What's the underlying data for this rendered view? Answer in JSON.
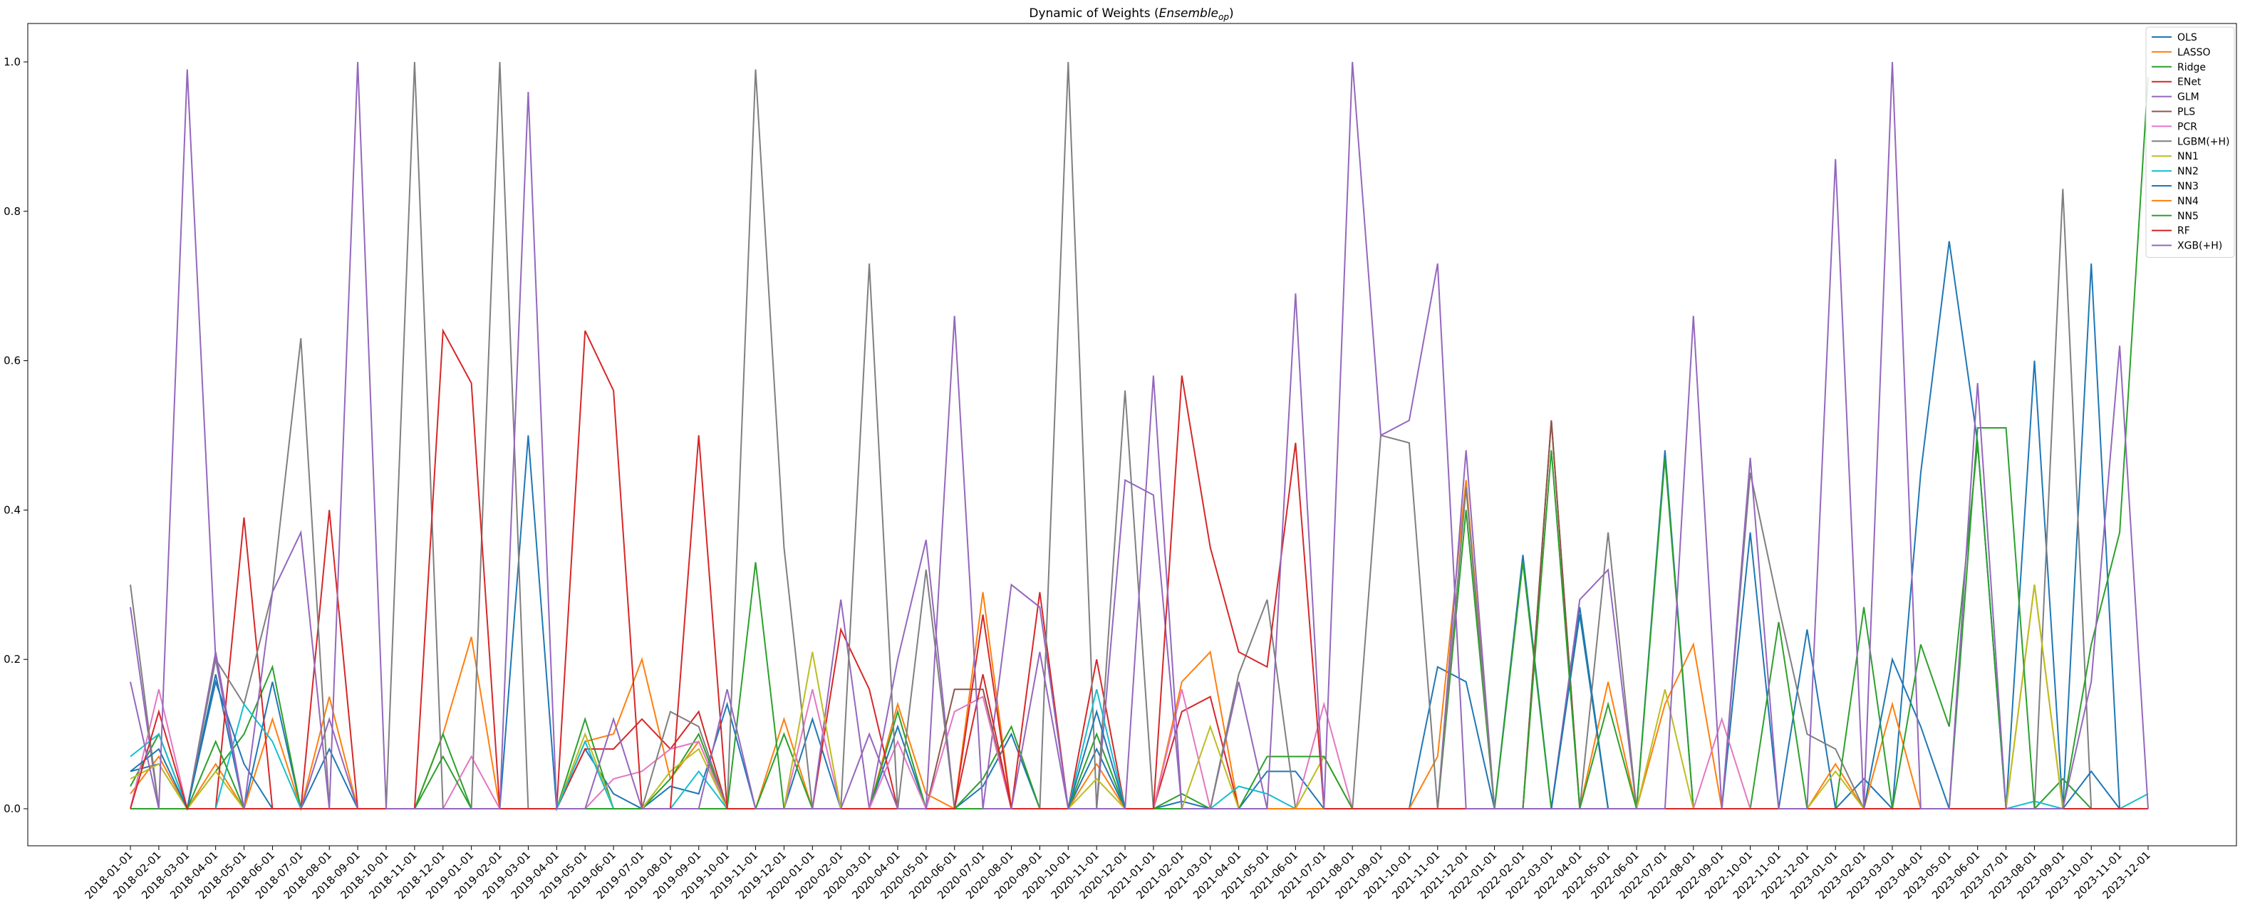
{
  "chart_data": {
    "type": "line",
    "title": "Dynamic of Weights (Ensemble_op)",
    "title_main": "Dynamic of Weights (",
    "title_italic": "Ensemble",
    "title_sub": "op",
    "title_close": ")",
    "xlabel": "",
    "ylabel": "",
    "ylim": [
      0,
      1.05
    ],
    "yticks": [
      "0.0",
      "0.2",
      "0.4",
      "0.6",
      "0.8",
      "1.0"
    ],
    "grid": false,
    "legend_position": "top-right",
    "x": [
      "2018-01-01",
      "2018-02-01",
      "2018-03-01",
      "2018-04-01",
      "2018-05-01",
      "2018-06-01",
      "2018-07-01",
      "2018-08-01",
      "2018-09-01",
      "2018-10-01",
      "2018-11-01",
      "2018-12-01",
      "2019-01-01",
      "2019-02-01",
      "2019-03-01",
      "2019-04-01",
      "2019-05-01",
      "2019-06-01",
      "2019-07-01",
      "2019-08-01",
      "2019-09-01",
      "2019-10-01",
      "2019-11-01",
      "2019-12-01",
      "2020-01-01",
      "2020-02-01",
      "2020-03-01",
      "2020-04-01",
      "2020-05-01",
      "2020-06-01",
      "2020-07-01",
      "2020-08-01",
      "2020-09-01",
      "2020-10-01",
      "2020-11-01",
      "2020-12-01",
      "2021-01-01",
      "2021-02-01",
      "2021-03-01",
      "2021-04-01",
      "2021-05-01",
      "2021-06-01",
      "2021-07-01",
      "2021-08-01",
      "2021-09-01",
      "2021-10-01",
      "2021-11-01",
      "2021-12-01",
      "2022-01-01",
      "2022-02-01",
      "2022-03-01",
      "2022-04-01",
      "2022-05-01",
      "2022-06-01",
      "2022-07-01",
      "2022-08-01",
      "2022-09-01",
      "2022-10-01",
      "2022-11-01",
      "2022-12-01",
      "2023-01-01",
      "2023-02-01",
      "2023-03-01",
      "2023-04-01",
      "2023-05-01",
      "2023-06-01",
      "2023-07-01",
      "2023-08-01",
      "2023-09-01",
      "2023-10-01",
      "2023-11-01",
      "2023-12-01"
    ],
    "series": [
      {
        "name": "OLS",
        "color": "#1f77b4",
        "values": [
          0.05,
          0.06,
          0.0,
          0.18,
          0.0,
          0.17,
          0.0,
          0.08,
          0.0,
          0.0,
          0.0,
          0.0,
          0.0,
          0.0,
          0.5,
          0.0,
          0.08,
          0.02,
          0.0,
          0.03,
          0.02,
          0.14,
          0.0,
          0.0,
          0.12,
          0.0,
          0.0,
          0.11,
          0.0,
          0.0,
          0.03,
          0.1,
          0.0,
          0.0,
          0.08,
          0.0,
          0.0,
          0.01,
          0.0,
          0.0,
          0.05,
          0.05,
          0.0,
          0.0,
          0.0,
          0.0,
          0.19,
          0.17,
          0.0,
          0.34,
          0.0,
          0.27,
          0.0,
          0.0,
          0.48,
          0.0,
          0.0,
          0.37,
          0.0,
          0.24,
          0.0,
          0.04,
          0.0,
          0.45,
          0.76,
          0.49,
          0.0,
          0.6,
          0.0,
          0.73,
          0.0,
          0.0
        ]
      },
      {
        "name": "LASSO",
        "color": "#ff7f0e",
        "values": [
          0.02,
          0.07,
          0.0,
          0.06,
          0.0,
          0.12,
          0.0,
          0.15,
          0.0,
          0.0,
          0.0,
          0.1,
          0.23,
          0.0,
          0.0,
          0.0,
          0.09,
          0.1,
          0.2,
          0.04,
          0.09,
          0.0,
          0.0,
          0.12,
          0.0,
          0.0,
          0.0,
          0.14,
          0.02,
          0.0,
          0.29,
          0.0,
          0.0,
          0.0,
          0.06,
          0.0,
          0.0,
          0.17,
          0.21,
          0.0,
          0.0,
          0.0,
          0.0,
          0.0,
          0.0,
          0.0,
          0.07,
          0.44,
          0.0,
          0.0,
          0.0,
          0.0,
          0.17,
          0.0,
          0.14,
          0.22,
          0.0,
          0.0,
          0.0,
          0.0,
          0.06,
          0.0,
          0.14,
          0.0,
          0.0,
          0.0,
          0.0,
          0.3,
          0.0,
          0.0,
          0.0,
          0.0
        ]
      },
      {
        "name": "Ridge",
        "color": "#2ca02c",
        "values": [
          0.03,
          0.1,
          0.0,
          0.05,
          0.1,
          0.19,
          0.0,
          0.0,
          0.0,
          0.0,
          0.0,
          0.1,
          0.0,
          0.0,
          0.0,
          0.0,
          0.12,
          0.0,
          0.0,
          0.04,
          0.1,
          0.0,
          0.0,
          0.1,
          0.0,
          0.0,
          0.0,
          0.13,
          0.0,
          0.0,
          0.04,
          0.11,
          0.0,
          0.0,
          0.1,
          0.0,
          0.0,
          0.02,
          0.0,
          0.0,
          0.0,
          0.0,
          0.0,
          0.0,
          0.0,
          0.0,
          0.0,
          0.4,
          0.0,
          0.33,
          0.0,
          0.26,
          0.0,
          0.0,
          0.47,
          0.0,
          0.0,
          0.0,
          0.25,
          0.0,
          0.0,
          0.27,
          0.0,
          0.22,
          0.11,
          0.49,
          0.0,
          0.0,
          0.04,
          0.0,
          0.0,
          0.0
        ]
      },
      {
        "name": "ENet",
        "color": "#d62728",
        "values": [
          0.0,
          0.0,
          0.0,
          0.0,
          0.39,
          0.0,
          0.0,
          0.4,
          0.0,
          0.0,
          0.0,
          0.0,
          0.0,
          0.0,
          0.0,
          0.0,
          0.08,
          0.08,
          0.12,
          0.08,
          0.13,
          0.0,
          0.0,
          0.0,
          0.0,
          0.24,
          0.16,
          0.0,
          0.0,
          0.0,
          0.26,
          0.0,
          0.29,
          0.0,
          0.2,
          0.0,
          0.0,
          0.13,
          0.15,
          0.0,
          0.0,
          0.0,
          0.0,
          0.0,
          0.0,
          0.0,
          0.0,
          0.0,
          0.0,
          0.0,
          0.52,
          0.0,
          0.0,
          0.0,
          0.0,
          0.0,
          0.0,
          0.0,
          0.0,
          0.0,
          0.0,
          0.0,
          0.0,
          0.0,
          0.0,
          0.0,
          0.0,
          0.0,
          0.0,
          0.0,
          0.0,
          0.0
        ]
      },
      {
        "name": "GLM",
        "color": "#9467bd",
        "values": [
          0.27,
          0.0,
          0.0,
          0.21,
          0.0,
          0.0,
          0.0,
          0.12,
          0.0,
          0.0,
          0.0,
          0.0,
          0.0,
          0.0,
          0.0,
          0.0,
          0.0,
          0.0,
          0.0,
          0.0,
          0.0,
          0.0,
          0.0,
          0.0,
          0.0,
          0.28,
          0.0,
          0.2,
          0.36,
          0.0,
          0.0,
          0.3,
          0.27,
          0.0,
          0.0,
          0.44,
          0.42,
          0.0,
          0.0,
          0.17,
          0.0,
          0.0,
          0.0,
          0.0,
          0.0,
          0.0,
          0.0,
          0.48,
          0.0,
          0.0,
          0.0,
          0.28,
          0.32,
          0.0,
          0.0,
          0.0,
          0.0,
          0.0,
          0.0,
          0.0,
          0.0,
          0.0,
          0.0,
          0.0,
          0.0,
          0.0,
          0.0,
          0.0,
          0.0,
          0.0,
          0.0,
          0.0
        ]
      },
      {
        "name": "PLS",
        "color": "#8c564b",
        "values": [
          0.0,
          0.0,
          0.0,
          0.0,
          0.0,
          0.0,
          0.0,
          0.0,
          0.0,
          0.0,
          0.0,
          0.0,
          0.0,
          0.0,
          0.0,
          0.0,
          0.0,
          0.0,
          0.0,
          0.0,
          0.0,
          0.0,
          0.0,
          0.0,
          0.0,
          0.0,
          0.0,
          0.0,
          0.0,
          0.16,
          0.16,
          0.0,
          0.0,
          0.0,
          0.0,
          0.0,
          0.0,
          0.0,
          0.0,
          0.0,
          0.0,
          0.0,
          0.0,
          0.0,
          0.0,
          0.0,
          0.0,
          0.0,
          0.0,
          0.0,
          0.52,
          0.0,
          0.0,
          0.0,
          0.0,
          0.0,
          0.0,
          0.0,
          0.0,
          0.0,
          0.0,
          0.0,
          0.0,
          0.0,
          0.0,
          0.0,
          0.0,
          0.0,
          0.0,
          0.0,
          0.0,
          0.0
        ]
      },
      {
        "name": "PCR",
        "color": "#e377c2",
        "values": [
          0.0,
          0.16,
          0.0,
          0.0,
          0.0,
          0.0,
          0.0,
          0.0,
          0.0,
          0.0,
          0.0,
          0.0,
          0.07,
          0.0,
          0.0,
          0.0,
          0.0,
          0.04,
          0.05,
          0.08,
          0.09,
          0.0,
          0.0,
          0.0,
          0.16,
          0.0,
          0.0,
          0.09,
          0.0,
          0.13,
          0.15,
          0.0,
          0.0,
          0.0,
          0.0,
          0.0,
          0.0,
          0.16,
          0.0,
          0.0,
          0.0,
          0.0,
          0.14,
          0.0,
          0.0,
          0.0,
          0.0,
          0.0,
          0.0,
          0.0,
          0.0,
          0.0,
          0.0,
          0.0,
          0.0,
          0.0,
          0.12,
          0.0,
          0.0,
          0.0,
          0.0,
          0.0,
          0.0,
          0.0,
          0.0,
          0.0,
          0.0,
          0.0,
          0.0,
          0.0,
          0.0,
          0.0
        ]
      },
      {
        "name": "LGBM(+H)",
        "color": "#7f7f7f",
        "values": [
          0.3,
          0.0,
          0.0,
          0.2,
          0.14,
          0.29,
          0.63,
          0.0,
          0.0,
          0.0,
          1.0,
          0.0,
          0.0,
          1.0,
          0.0,
          0.0,
          0.0,
          0.0,
          0.0,
          0.13,
          0.11,
          0.0,
          0.99,
          0.35,
          0.0,
          0.0,
          0.73,
          0.0,
          0.32,
          0.0,
          0.0,
          0.0,
          0.0,
          1.0,
          0.0,
          0.56,
          0.0,
          0.0,
          0.0,
          0.18,
          0.28,
          0.0,
          0.0,
          0.0,
          0.5,
          0.49,
          0.0,
          0.43,
          0.0,
          0.0,
          0.0,
          0.0,
          0.37,
          0.0,
          0.0,
          0.0,
          0.0,
          0.45,
          0.27,
          0.1,
          0.08,
          0.0,
          0.0,
          0.0,
          0.0,
          0.0,
          0.0,
          0.0,
          0.83,
          0.0,
          0.0,
          0.0
        ]
      },
      {
        "name": "NN1",
        "color": "#bcbd22",
        "values": [
          0.04,
          0.06,
          0.0,
          0.05,
          0.0,
          0.0,
          0.0,
          0.0,
          0.0,
          0.0,
          0.0,
          0.0,
          0.0,
          0.0,
          0.0,
          0.0,
          0.1,
          0.0,
          0.0,
          0.05,
          0.08,
          0.0,
          0.0,
          0.0,
          0.21,
          0.0,
          0.0,
          0.0,
          0.0,
          0.0,
          0.0,
          0.0,
          0.0,
          0.0,
          0.04,
          0.0,
          0.0,
          0.0,
          0.11,
          0.0,
          0.0,
          0.0,
          0.07,
          0.0,
          0.0,
          0.0,
          0.0,
          0.0,
          0.0,
          0.0,
          0.0,
          0.0,
          0.0,
          0.0,
          0.16,
          0.0,
          0.0,
          0.0,
          0.0,
          0.0,
          0.05,
          0.0,
          0.0,
          0.0,
          0.0,
          0.0,
          0.0,
          0.3,
          0.0,
          0.0,
          0.0,
          0.0
        ]
      },
      {
        "name": "NN2",
        "color": "#17becf",
        "values": [
          0.07,
          0.1,
          0.0,
          0.0,
          0.14,
          0.09,
          0.0,
          0.0,
          0.0,
          0.0,
          0.0,
          0.0,
          0.0,
          0.0,
          0.0,
          0.0,
          0.09,
          0.0,
          0.0,
          0.0,
          0.05,
          0.0,
          0.0,
          0.0,
          0.0,
          0.0,
          0.0,
          0.0,
          0.0,
          0.0,
          0.0,
          0.0,
          0.0,
          0.0,
          0.16,
          0.0,
          0.0,
          0.0,
          0.0,
          0.03,
          0.02,
          0.0,
          0.0,
          0.0,
          0.0,
          0.0,
          0.0,
          0.0,
          0.0,
          0.0,
          0.0,
          0.0,
          0.0,
          0.0,
          0.0,
          0.0,
          0.0,
          0.0,
          0.0,
          0.0,
          0.0,
          0.0,
          0.0,
          0.0,
          0.0,
          0.0,
          0.0,
          0.01,
          0.0,
          0.0,
          0.0,
          0.02
        ]
      },
      {
        "name": "NN3",
        "color": "#1f77b4",
        "values": [
          0.05,
          0.08,
          0.0,
          0.17,
          0.06,
          0.0,
          0.0,
          0.0,
          0.0,
          0.0,
          0.0,
          0.0,
          0.0,
          0.0,
          0.0,
          0.0,
          0.0,
          0.0,
          0.0,
          0.0,
          0.0,
          0.0,
          0.0,
          0.0,
          0.0,
          0.0,
          0.0,
          0.0,
          0.0,
          0.0,
          0.0,
          0.0,
          0.0,
          0.0,
          0.13,
          0.0,
          0.0,
          0.0,
          0.0,
          0.0,
          0.0,
          0.0,
          0.0,
          0.0,
          0.0,
          0.0,
          0.0,
          0.0,
          0.0,
          0.0,
          0.0,
          0.26,
          0.0,
          0.0,
          0.0,
          0.0,
          0.0,
          0.0,
          0.0,
          0.0,
          0.0,
          0.0,
          0.2,
          0.11,
          0.0,
          0.0,
          0.0,
          0.0,
          0.0,
          0.05,
          0.0,
          0.0
        ]
      },
      {
        "name": "NN4",
        "color": "#ff7f0e",
        "values": [
          0.0,
          0.0,
          0.0,
          0.0,
          0.0,
          0.0,
          0.0,
          0.0,
          0.0,
          0.0,
          0.0,
          0.0,
          0.0,
          0.0,
          0.0,
          0.0,
          0.0,
          0.0,
          0.0,
          0.0,
          0.0,
          0.0,
          0.0,
          0.0,
          0.0,
          0.0,
          0.0,
          0.0,
          0.0,
          0.0,
          0.0,
          0.0,
          0.0,
          0.0,
          0.0,
          0.0,
          0.0,
          0.0,
          0.0,
          0.0,
          0.0,
          0.0,
          0.0,
          0.0,
          0.0,
          0.0,
          0.0,
          0.0,
          0.0,
          0.0,
          0.0,
          0.0,
          0.0,
          0.0,
          0.0,
          0.0,
          0.0,
          0.0,
          0.0,
          0.0,
          0.0,
          0.0,
          0.0,
          0.0,
          0.0,
          0.0,
          0.0,
          0.0,
          0.0,
          0.0,
          0.0,
          0.0
        ]
      },
      {
        "name": "NN5",
        "color": "#2ca02c",
        "values": [
          0.0,
          0.0,
          0.0,
          0.09,
          0.0,
          0.0,
          0.0,
          0.0,
          0.0,
          0.0,
          0.0,
          0.07,
          0.0,
          0.0,
          0.0,
          0.0,
          0.0,
          0.0,
          0.0,
          0.0,
          0.0,
          0.0,
          0.33,
          0.0,
          0.0,
          0.0,
          0.0,
          0.0,
          0.0,
          0.0,
          0.0,
          0.0,
          0.0,
          0.0,
          0.0,
          0.0,
          0.0,
          0.0,
          0.0,
          0.0,
          0.07,
          0.07,
          0.07,
          0.0,
          0.0,
          0.0,
          0.0,
          0.0,
          0.0,
          0.0,
          0.48,
          0.0,
          0.14,
          0.0,
          0.0,
          0.0,
          0.0,
          0.0,
          0.0,
          0.0,
          0.0,
          0.0,
          0.0,
          0.0,
          0.0,
          0.51,
          0.51,
          0.0,
          0.0,
          0.22,
          0.37,
          0.98
        ]
      },
      {
        "name": "RF",
        "color": "#d62728",
        "values": [
          0.0,
          0.13,
          0.0,
          0.0,
          0.0,
          0.0,
          0.0,
          0.0,
          0.0,
          0.0,
          0.0,
          0.64,
          0.57,
          0.0,
          0.0,
          0.0,
          0.64,
          0.56,
          0.0,
          0.0,
          0.5,
          0.0,
          0.0,
          0.0,
          0.0,
          0.0,
          0.0,
          0.0,
          0.0,
          0.0,
          0.18,
          0.0,
          0.0,
          0.0,
          0.0,
          0.0,
          0.0,
          0.58,
          0.35,
          0.21,
          0.19,
          0.49,
          0.0,
          0.0,
          0.0,
          0.0,
          0.0,
          0.0,
          0.0,
          0.0,
          0.0,
          0.0,
          0.0,
          0.0,
          0.0,
          0.0,
          0.0,
          0.0,
          0.0,
          0.0,
          0.0,
          0.0,
          0.0,
          0.0,
          0.0,
          0.0,
          0.0,
          0.0,
          0.0,
          0.0,
          0.0,
          0.0
        ]
      },
      {
        "name": "XGB(+H)",
        "color": "#9467bd",
        "values": [
          0.17,
          0.0,
          0.99,
          0.2,
          0.0,
          0.29,
          0.37,
          0.0,
          1.0,
          0.0,
          0.0,
          0.0,
          0.0,
          0.0,
          0.96,
          0.0,
          0.0,
          0.12,
          0.0,
          0.0,
          0.0,
          0.16,
          0.0,
          0.0,
          0.0,
          0.0,
          0.1,
          0.0,
          0.0,
          0.66,
          0.0,
          0.0,
          0.21,
          0.0,
          0.0,
          0.0,
          0.58,
          0.0,
          0.0,
          0.0,
          0.0,
          0.69,
          0.0,
          1.0,
          0.5,
          0.52,
          0.73,
          0.0,
          0.0,
          0.0,
          0.0,
          0.0,
          0.0,
          0.0,
          0.0,
          0.66,
          0.0,
          0.47,
          0.0,
          0.0,
          0.87,
          0.0,
          1.0,
          0.0,
          0.0,
          0.57,
          0.0,
          0.0,
          0.0,
          0.17,
          0.62,
          0.0
        ]
      }
    ]
  }
}
